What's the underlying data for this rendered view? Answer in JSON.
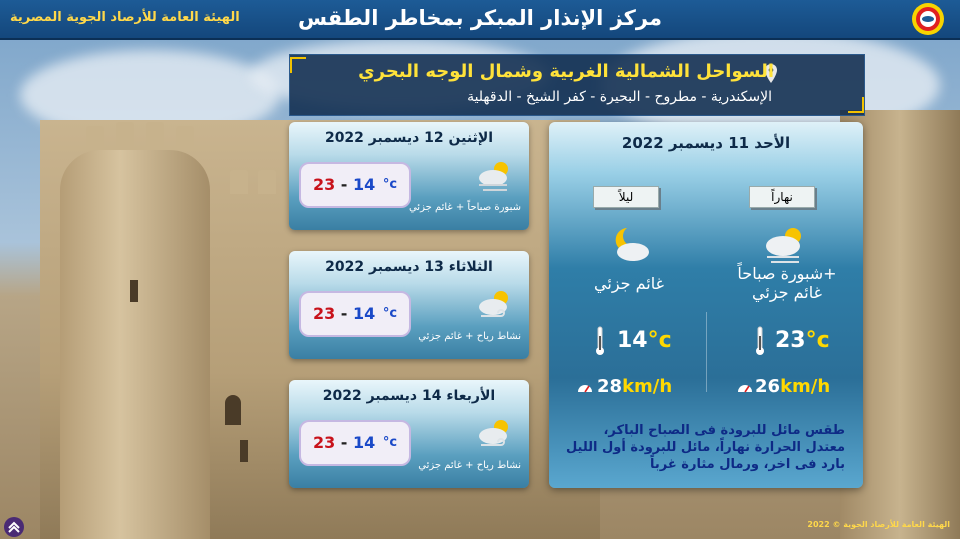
{
  "header": {
    "title": "مركز الإنذار المبكر بمخاطر الطقس",
    "organization": "الهيئة العامة للأرصاد الجوية المصرية",
    "logo_icon": "egyptian-meteorological-authority-logo"
  },
  "region": {
    "name": "السواحل الشمالية الغربية وشمال الوجه البحري",
    "cities": "الإسكندرية - مطروح - البحيرة - كفر الشيخ - الدقهلية",
    "icon": "location-pin-icon"
  },
  "today": {
    "date": "الأحد 11 ديسمبر 2022",
    "day": {
      "label": "نهاراً",
      "condition_line1": "شبورة صباحاً+",
      "condition_line2": "غائم جزئي",
      "temp": "23",
      "unit": "°c",
      "wind": "26",
      "wind_unit": "km/h",
      "icon": "fog-partly-cloudy-icon"
    },
    "night": {
      "label": "ليلاً",
      "condition": "غائم جزئي",
      "temp": "14",
      "unit": "°c",
      "wind": "28",
      "wind_unit": "km/h",
      "icon": "moon-cloud-icon"
    },
    "summary_line1": "طقس مائل للبرودة فى الصباح الباكر،",
    "summary_line2": "معتدل الحرارة نهاراً، مائل للبرودة أول الليل",
    "summary_line3": "بارد فى اخر، ورمال مثارة غرباً"
  },
  "forecast": [
    {
      "date": "الإثنين 12 ديسمبر 2022",
      "low": "14",
      "high": "23",
      "unit": "°c",
      "desc": "شبورة صباحاً + غائم جزئي",
      "icon": "fog-partly-cloudy-icon"
    },
    {
      "date": "الثلاثاء 13 ديسمبر 2022",
      "low": "14",
      "high": "23",
      "unit": "°c",
      "desc": "نشاط رياح + غائم جزئي",
      "icon": "wind-partly-cloudy-icon"
    },
    {
      "date": "الأربعاء 14 ديسمبر 2022",
      "low": "14",
      "high": "23",
      "unit": "°c",
      "desc": "نشاط رياح + غائم جزئي",
      "icon": "wind-partly-cloudy-icon"
    }
  ],
  "footer": {
    "copyright": "الهيئة العامة للأرصاد الجوية © 2022"
  },
  "colors": {
    "accent": "#ffd800",
    "header": "#1d5b96",
    "high_temp": "#c8121b",
    "low_temp": "#1a49c8"
  }
}
